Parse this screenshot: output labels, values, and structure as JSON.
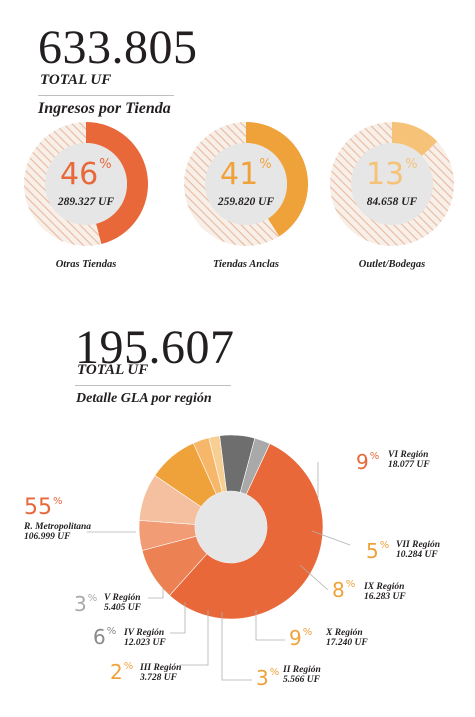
{
  "section1": {
    "total_value": "633.805",
    "total_label": "TOTAL UF",
    "title": "Ingresos por Tienda"
  },
  "section2": {
    "total_value": "195.607",
    "total_label": "TOTAL UF",
    "title": "Detalle GLA por región"
  },
  "chart_data": [
    {
      "type": "pie",
      "title": "Ingresos por Tienda",
      "items": [
        {
          "name": "Otras Tiendas",
          "percent": 46,
          "percent_label": "46",
          "value_label": "289.327 UF",
          "color": "#e8683a"
        },
        {
          "name": "Tiendas Anclas",
          "percent": 41,
          "percent_label": "41",
          "value_label": "259.820 UF",
          "color": "#f0a23a"
        },
        {
          "name": "Outlet/Bodegas",
          "percent": 13,
          "percent_label": "13",
          "value_label": "84.658 UF",
          "color": "#f5c278"
        }
      ]
    },
    {
      "type": "pie",
      "title": "Detalle GLA por región",
      "regions": [
        {
          "name": "R. Metropolitana",
          "percent_label": "55",
          "value": 106999,
          "value_label": "106.999 UF",
          "color": "#e8683a",
          "label_color": "#e8683a"
        },
        {
          "name": "VI Región",
          "percent_label": "9",
          "value": 18077,
          "value_label": "18.077 UF",
          "color": "#ec8154",
          "label_color": "#e8683a"
        },
        {
          "name": "VII Región",
          "percent_label": "5",
          "value": 10284,
          "value_label": "10.284 UF",
          "color": "#f29c76",
          "label_color": "#f0a23a"
        },
        {
          "name": "IX Región",
          "percent_label": "8",
          "value": 16283,
          "value_label": "16.283 UF",
          "color": "#f5c0a0",
          "label_color": "#f0a23a"
        },
        {
          "name": "X Región",
          "percent_label": "9",
          "value": 17240,
          "value_label": "17.240 UF",
          "color": "#f0a23a",
          "label_color": "#f0a23a"
        },
        {
          "name": "II Región",
          "percent_label": "3",
          "value": 5566,
          "value_label": "5.566 UF",
          "color": "#f6b76a",
          "label_color": "#f0a23a"
        },
        {
          "name": "III Región",
          "percent_label": "2",
          "value": 3728,
          "value_label": "3.728 UF",
          "color": "#f8cf93",
          "label_color": "#f0a23a"
        },
        {
          "name": "IV Región",
          "percent_label": "6",
          "value": 12023,
          "value_label": "12.023 UF",
          "color": "#6e6e6e",
          "label_color": "#8a8a8a"
        },
        {
          "name": "V Región",
          "percent_label": "3",
          "value": 5405,
          "value_label": "5.405 UF",
          "color": "#a9a9a9",
          "label_color": "#a9a9a9"
        }
      ]
    }
  ]
}
